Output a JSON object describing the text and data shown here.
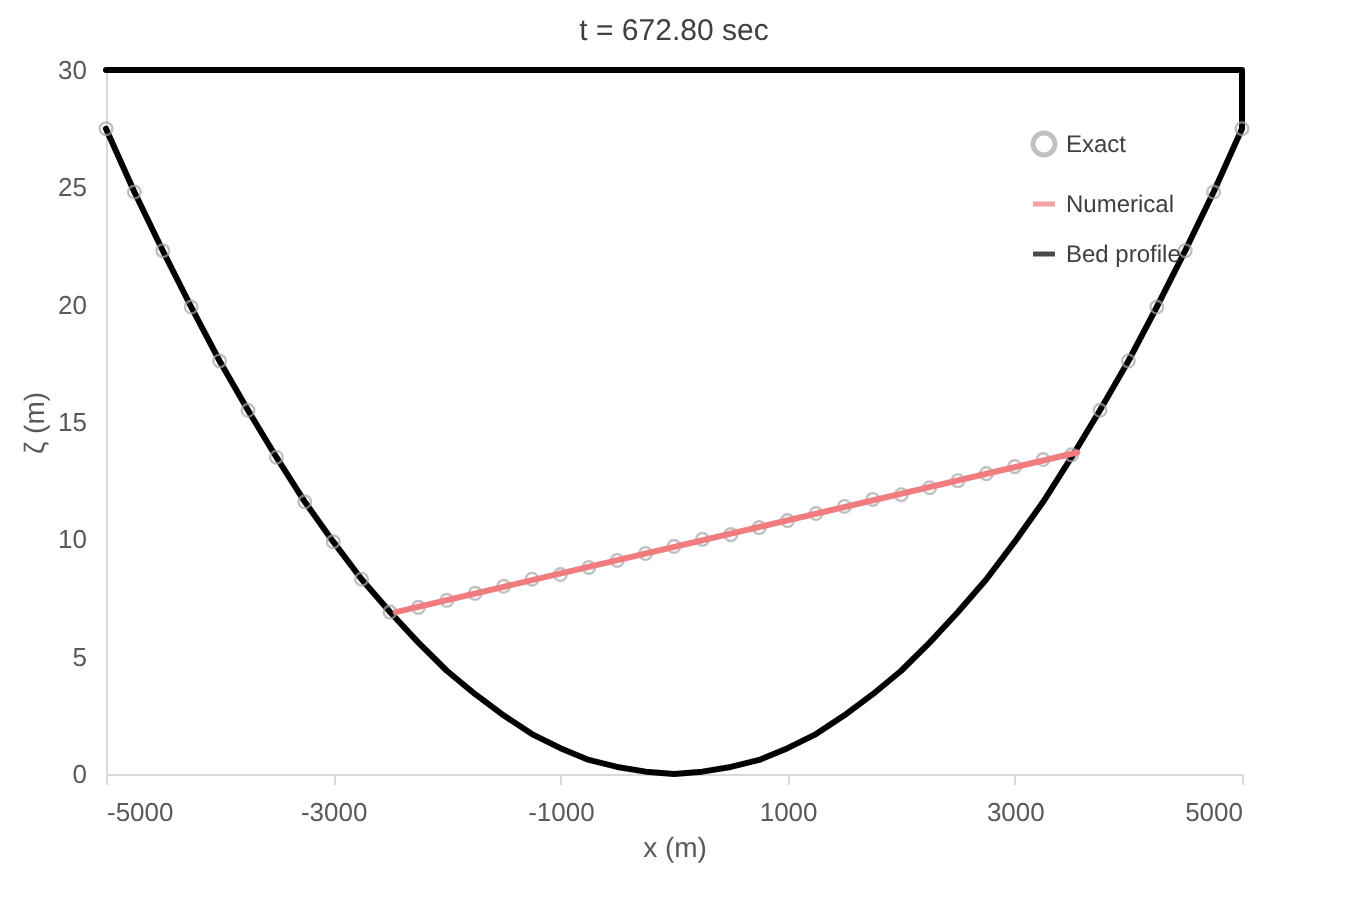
{
  "chart_data": {
    "type": "line",
    "title": "t = 672.80 sec",
    "xlabel": "x (m)",
    "ylabel": "ζ (m)",
    "xlim": [
      -5000,
      5000
    ],
    "xticks": [
      -5000,
      -3000,
      -1000,
      1000,
      3000,
      5000
    ],
    "ylim": [
      0,
      30
    ],
    "yticks": [
      0,
      5,
      10,
      15,
      20,
      25,
      30
    ],
    "grid": false,
    "legend": "top right",
    "series": [
      {
        "name": "Exact",
        "type": "scatter",
        "marker": "circle",
        "color": "#a6a6a6",
        "x": [
          -5000,
          -4750,
          -4500,
          -4250,
          -4000,
          -3750,
          -3500,
          -3250,
          -3000,
          -2750,
          -2500,
          -2250,
          -2000,
          -1750,
          -1500,
          -1250,
          -1000,
          -750,
          -500,
          -250,
          0,
          250,
          500,
          750,
          1000,
          1250,
          1500,
          1750,
          2000,
          2250,
          2500,
          2750,
          3000,
          3250,
          3500,
          3750,
          4000,
          4250,
          4500,
          4750,
          5000
        ],
        "values": [
          27.5,
          24.8,
          22.3,
          19.9,
          17.6,
          15.5,
          13.5,
          11.6,
          9.9,
          8.3,
          6.9,
          7.1,
          7.4,
          7.7,
          8.0,
          8.3,
          8.5,
          8.8,
          9.1,
          9.4,
          9.7,
          10.0,
          10.2,
          10.5,
          10.8,
          11.1,
          11.4,
          11.7,
          11.9,
          12.2,
          12.5,
          12.8,
          13.1,
          13.4,
          13.6,
          15.5,
          17.6,
          19.9,
          22.3,
          24.8,
          27.5
        ]
      },
      {
        "name": "Numerical",
        "color": "#f07c80",
        "x": [
          -2450,
          3550
        ],
        "values": [
          6.9,
          13.7
        ]
      },
      {
        "name": "Bed profile",
        "color": "#000000",
        "x": [
          -5000,
          -4750,
          -4500,
          -4250,
          -4000,
          -3750,
          -3500,
          -3250,
          -3000,
          -2750,
          -2500,
          -2250,
          -2000,
          -1750,
          -1500,
          -1250,
          -1000,
          -750,
          -500,
          -250,
          0,
          250,
          500,
          750,
          1000,
          1250,
          1500,
          1750,
          2000,
          2250,
          2500,
          2750,
          3000,
          3250,
          3500,
          3750,
          4000,
          4250,
          4500,
          4750,
          5000,
          5000,
          -5000
        ],
        "values": [
          27.5,
          24.8,
          22.3,
          19.9,
          17.6,
          15.5,
          13.5,
          11.6,
          9.9,
          8.3,
          6.9,
          5.6,
          4.4,
          3.4,
          2.5,
          1.7,
          1.1,
          0.6,
          0.3,
          0.1,
          0,
          0.1,
          0.3,
          0.6,
          1.1,
          1.7,
          2.5,
          3.4,
          4.4,
          5.6,
          6.9,
          8.3,
          9.9,
          11.6,
          13.5,
          15.5,
          17.6,
          19.9,
          22.3,
          24.8,
          27.5,
          30,
          30
        ]
      }
    ]
  }
}
